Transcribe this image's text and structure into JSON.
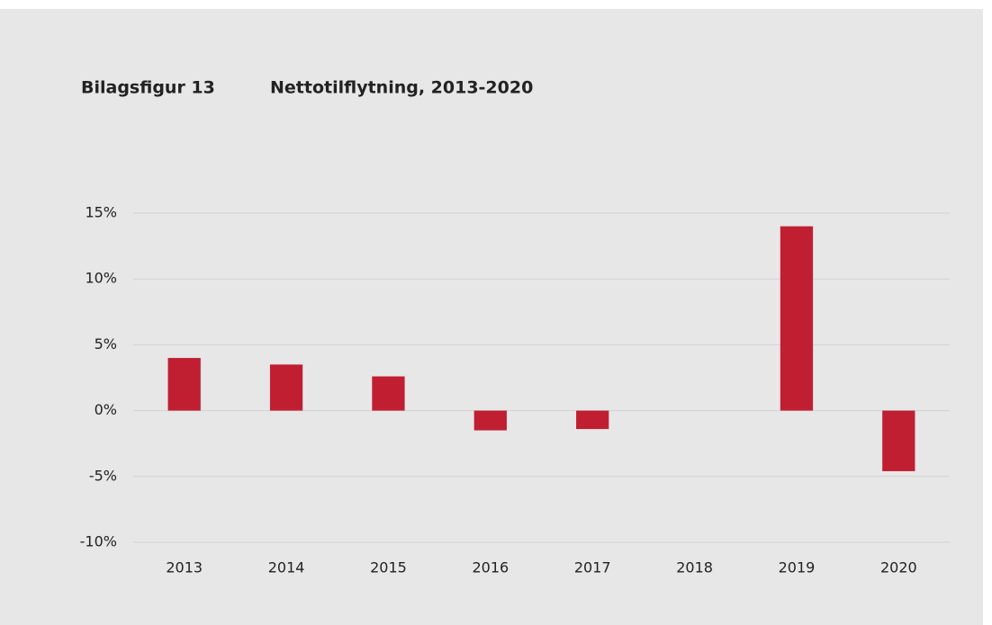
{
  "chart_data": {
    "type": "bar",
    "figure_label": "Bilagsfigur 13",
    "title": "Nettotilflytning, 2013-2020",
    "categories": [
      "2013",
      "2014",
      "2015",
      "2016",
      "2017",
      "2018",
      "2019",
      "2020"
    ],
    "values": [
      4.0,
      3.5,
      2.6,
      -1.5,
      -1.4,
      0,
      14.0,
      -4.6
    ],
    "color": "#c01f32",
    "ylim": [
      -10,
      15
    ],
    "yticks": [
      {
        "value": -10,
        "label": "-10%"
      },
      {
        "value": -5,
        "label": "-5%"
      },
      {
        "value": 0,
        "label": "0%"
      },
      {
        "value": 5,
        "label": "5%"
      },
      {
        "value": 10,
        "label": "10%"
      },
      {
        "value": 15,
        "label": "15%"
      }
    ],
    "grid": true
  }
}
